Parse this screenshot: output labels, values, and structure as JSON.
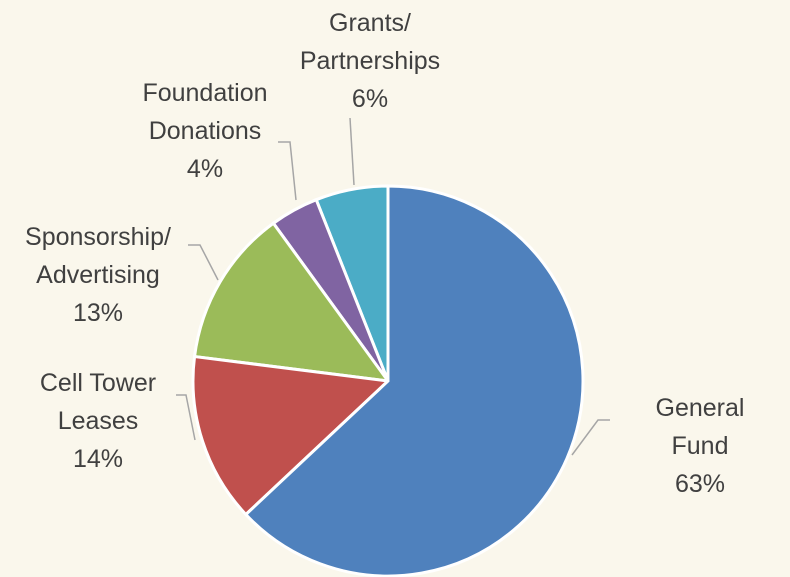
{
  "chart_data": {
    "type": "pie",
    "categories": [
      "General Fund",
      "Cell Tower\nLeases",
      "Sponsorship/\nAdvertising",
      "Foundation\nDonations",
      "Grants/\nPartnerships"
    ],
    "values": [
      63,
      14,
      13,
      4,
      6
    ],
    "value_labels": [
      "63%",
      "14%",
      "13%",
      "4%",
      "6%"
    ],
    "colors": [
      "#4f81bd",
      "#c0504d",
      "#9bbb59",
      "#8064a2",
      "#4bacc6"
    ]
  }
}
